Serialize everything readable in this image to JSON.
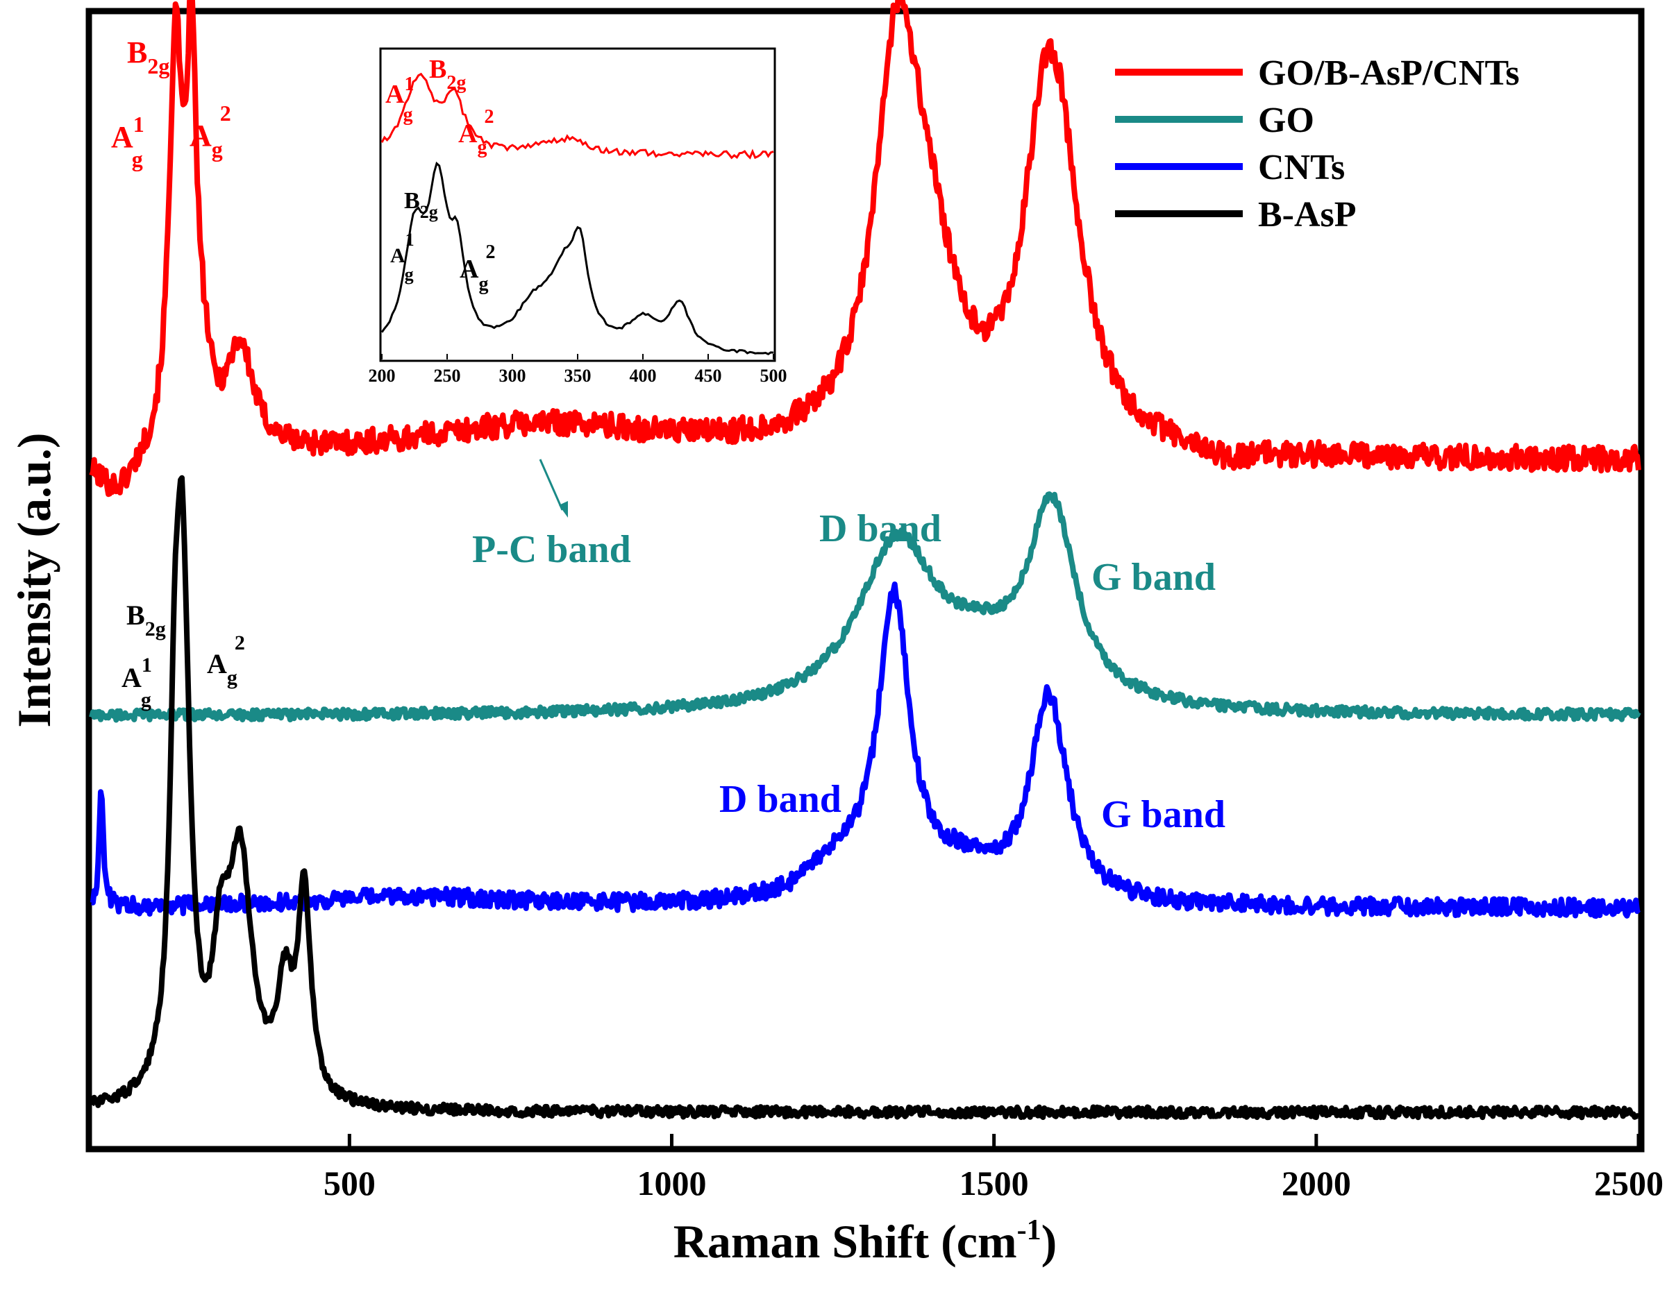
{
  "chart_data": {
    "type": "line",
    "xlabel": "Raman Shift (cm",
    "xlabel_sup": "-1",
    "xlabel_tail": ")",
    "ylabel": "Intensity (a.u.)",
    "xlim": [
      100,
      2500
    ],
    "ylim": [
      0,
      10
    ],
    "x_ticks": [
      500,
      1000,
      1500,
      2000,
      2500
    ],
    "x_tick_labels": [
      "500",
      "1000",
      "1500",
      "2000",
      "2500"
    ],
    "legend_position": "top-right",
    "colors": {
      "red": "#ff0000",
      "teal": "#1a8a87",
      "blue": "#0000ff",
      "black": "#000000"
    },
    "series": [
      {
        "name": "GO/B-AsP/CNTs",
        "color": "#ff0000",
        "baseline": 6.05,
        "noise": 0.11,
        "peaks": [
          [
            230,
            3.45,
            12
          ],
          [
            255,
            3.25,
            10
          ],
          [
            330,
            0.9,
            25
          ],
          [
            275,
            0.4,
            12
          ],
          [
            800,
            0.3,
            250
          ],
          [
            1350,
            3.3,
            42
          ],
          [
            1400,
            1.2,
            50
          ],
          [
            1595,
            2.9,
            48
          ],
          [
            1570,
            0.8,
            30
          ]
        ],
        "dip": [
          [
            140,
            -0.35,
            40
          ],
          [
            1860,
            -0.1,
            60
          ]
        ]
      },
      {
        "name": "GO",
        "color": "#1a8a87",
        "baseline": 3.8,
        "noise": 0.045,
        "peaks": [
          [
            1350,
            1.45,
            75
          ],
          [
            1590,
            1.7,
            45
          ],
          [
            1480,
            0.35,
            80
          ]
        ],
        "dip": []
      },
      {
        "name": "CNTs",
        "color": "#0000ff",
        "baseline": 2.1,
        "noise": 0.075,
        "peaks": [
          [
            115,
            1.0,
            4
          ],
          [
            1345,
            2.6,
            30
          ],
          [
            1585,
            1.8,
            35
          ],
          [
            1260,
            0.3,
            60
          ],
          [
            1450,
            0.25,
            60
          ],
          [
            600,
            0.1,
            200
          ]
        ],
        "dip": []
      },
      {
        "name": "B-AsP",
        "color": "#000000",
        "baseline": 0.3,
        "noise": 0.045,
        "peaks": [
          [
            240,
            4.9,
            14
          ],
          [
            228,
            1.6,
            8
          ],
          [
            330,
            2.1,
            22
          ],
          [
            300,
            1.0,
            15
          ],
          [
            400,
            0.9,
            15
          ],
          [
            430,
            1.8,
            12
          ]
        ],
        "dip": [
          [
            275,
            -0.15,
            10
          ]
        ]
      }
    ],
    "annotations": {
      "pc_band": "P-C band",
      "go_d_band": "D band",
      "go_g_band": "G band",
      "cnt_d_band": "D band",
      "cnt_g_band": "G band",
      "mode_A": "A",
      "mode_B": "B",
      "sup_1": "1",
      "sup_2": "2",
      "sub_g": "g",
      "sub_2g": "2g"
    },
    "inset": {
      "xlim": [
        200,
        500
      ],
      "x_ticks": [
        200,
        250,
        300,
        350,
        400,
        450,
        500
      ],
      "x_tick_labels": [
        "200",
        "250",
        "300",
        "350",
        "400",
        "450",
        "500"
      ],
      "series": [
        {
          "name": "GO/B-AsP/CNTs",
          "color": "#ff0000",
          "baseline": 7.0,
          "noise": 0.12,
          "peaks": [
            [
              230,
              2.2,
              12
            ],
            [
              255,
              1.8,
              10
            ],
            [
              340,
              0.5,
              20
            ],
            [
              220,
              0.6,
              8
            ]
          ],
          "dip": []
        },
        {
          "name": "B-AsP",
          "color": "#000000",
          "baseline": 0.0,
          "noise": 0.05,
          "peaks": [
            [
              225,
              3.8,
              10
            ],
            [
              243,
              5.2,
              9
            ],
            [
              258,
              2.8,
              7
            ],
            [
              315,
              1.2,
              16
            ],
            [
              340,
              2.6,
              16
            ],
            [
              352,
              2.4,
              7
            ],
            [
              400,
              1.0,
              14
            ],
            [
              428,
              1.6,
              10
            ]
          ],
          "dip": []
        }
      ]
    }
  }
}
